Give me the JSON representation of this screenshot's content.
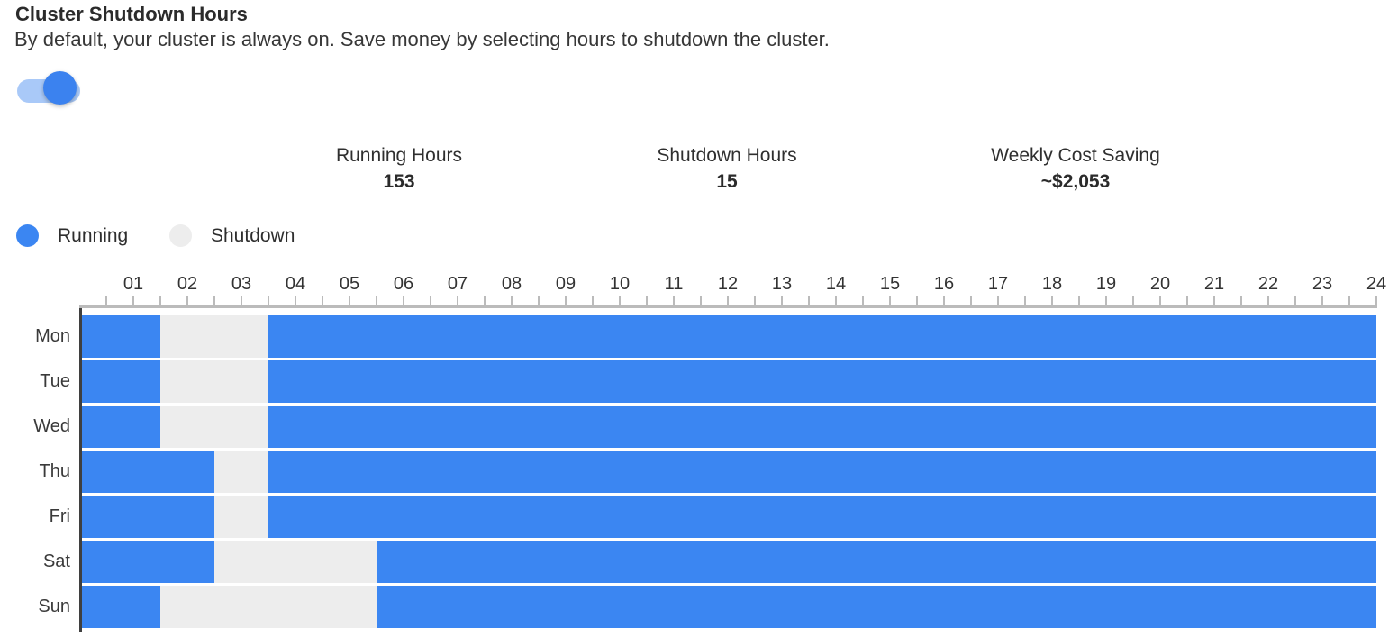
{
  "header": {
    "title": "Cluster Shutdown Hours",
    "subtitle": "By default, your cluster is always on. Save money by selecting hours to shutdown the cluster."
  },
  "toggle": {
    "state": "on",
    "track_color": "#a9c9f8",
    "knob_color": "#3b82ef"
  },
  "stats": [
    {
      "label": "Running Hours",
      "value": "153"
    },
    {
      "label": "Shutdown Hours",
      "value": "15"
    },
    {
      "label": "Weekly Cost Saving",
      "value": "~$2,053"
    }
  ],
  "legend": [
    {
      "label": "Running",
      "color": "#3b86f2"
    },
    {
      "label": "Shutdown",
      "color": "#ededed"
    }
  ],
  "chart_data": {
    "type": "heatmap",
    "title": "Weekly cluster running/shutdown schedule",
    "x_range_hours": [
      0,
      24
    ],
    "tick_interval_hours": 0.5,
    "hour_labels": [
      "01",
      "02",
      "03",
      "04",
      "05",
      "06",
      "07",
      "08",
      "09",
      "10",
      "11",
      "12",
      "13",
      "14",
      "15",
      "16",
      "17",
      "18",
      "19",
      "20",
      "21",
      "22",
      "23",
      "24"
    ],
    "days": [
      "Mon",
      "Tue",
      "Wed",
      "Thu",
      "Fri",
      "Sat",
      "Sun"
    ],
    "rows": [
      {
        "day": "Mon",
        "shutdown_hours": [
          [
            1.5,
            3.5
          ]
        ]
      },
      {
        "day": "Tue",
        "shutdown_hours": [
          [
            1.5,
            3.5
          ]
        ]
      },
      {
        "day": "Wed",
        "shutdown_hours": [
          [
            1.5,
            3.5
          ]
        ]
      },
      {
        "day": "Thu",
        "shutdown_hours": [
          [
            2.5,
            3.5
          ]
        ]
      },
      {
        "day": "Fri",
        "shutdown_hours": [
          [
            2.5,
            3.5
          ]
        ]
      },
      {
        "day": "Sat",
        "shutdown_hours": [
          [
            2.5,
            5.5
          ]
        ]
      },
      {
        "day": "Sun",
        "shutdown_hours": [
          [
            1.5,
            5.5
          ]
        ]
      }
    ],
    "totals": {
      "running_hours": 153,
      "shutdown_hours": 15
    },
    "colors": {
      "running": "#3b86f2",
      "shutdown": "#ededed",
      "axis": "#bbbbbb",
      "axis_spine": "#3f3f3f"
    }
  }
}
